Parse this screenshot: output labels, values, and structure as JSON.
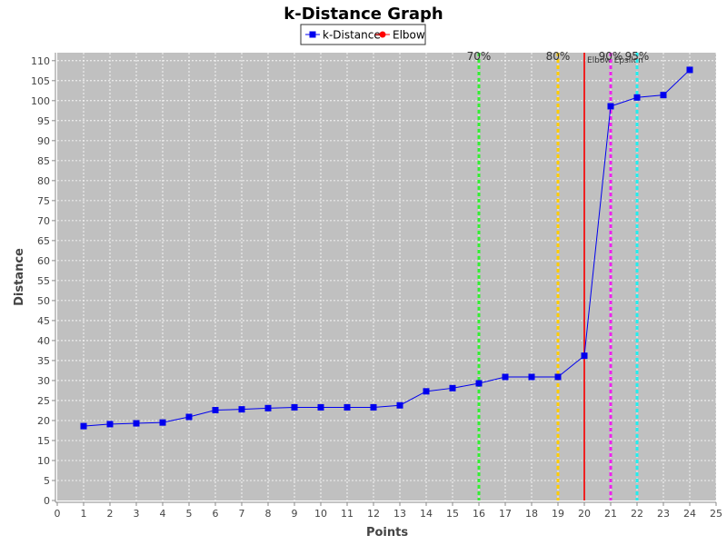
{
  "chart_data": {
    "type": "line",
    "title": "k-Distance Graph",
    "xlabel": "Points",
    "ylabel": "Distance",
    "xlim": [
      0,
      25
    ],
    "ylim": [
      0,
      112
    ],
    "x_ticks": [
      0,
      1,
      2,
      3,
      4,
      5,
      6,
      7,
      8,
      9,
      10,
      11,
      12,
      13,
      14,
      15,
      16,
      17,
      18,
      19,
      20,
      21,
      22,
      23,
      24,
      25
    ],
    "y_ticks": [
      0,
      5,
      10,
      15,
      20,
      25,
      30,
      35,
      40,
      45,
      50,
      55,
      60,
      65,
      70,
      75,
      80,
      85,
      90,
      95,
      100,
      105,
      110
    ],
    "grid": true,
    "legend_position": "top-center",
    "background_color": "#c0c0c0",
    "series": [
      {
        "name": "k-Distance",
        "color": "#0000ee",
        "marker": "square",
        "x": [
          1,
          2,
          3,
          4,
          5,
          6,
          7,
          8,
          9,
          10,
          11,
          12,
          13,
          14,
          15,
          16,
          17,
          18,
          19,
          20,
          21,
          22,
          23,
          24
        ],
        "y": [
          18.6,
          19.1,
          19.3,
          19.5,
          20.9,
          22.6,
          22.8,
          23.1,
          23.3,
          23.3,
          23.3,
          23.3,
          23.8,
          27.3,
          28.1,
          29.3,
          30.9,
          30.9,
          30.9,
          36.2,
          98.6,
          100.8,
          101.4,
          107.7
        ]
      },
      {
        "name": "Elbow",
        "color": "#ff0000",
        "marker": "circle",
        "x": [],
        "y": []
      }
    ],
    "reference_lines": [
      {
        "x": 16,
        "label": "70%",
        "color": "#33ee33",
        "style": "dashed"
      },
      {
        "x": 19,
        "label": "80%",
        "color": "#ffcc00",
        "style": "dashed"
      },
      {
        "x": 20,
        "label": "Elbow Epsilon",
        "color": "#ee2222",
        "style": "solid"
      },
      {
        "x": 21,
        "label": "90%",
        "color": "#ee22ee",
        "style": "dashed"
      },
      {
        "x": 22,
        "label": "95%",
        "color": "#22eeee",
        "style": "dashed"
      }
    ]
  }
}
